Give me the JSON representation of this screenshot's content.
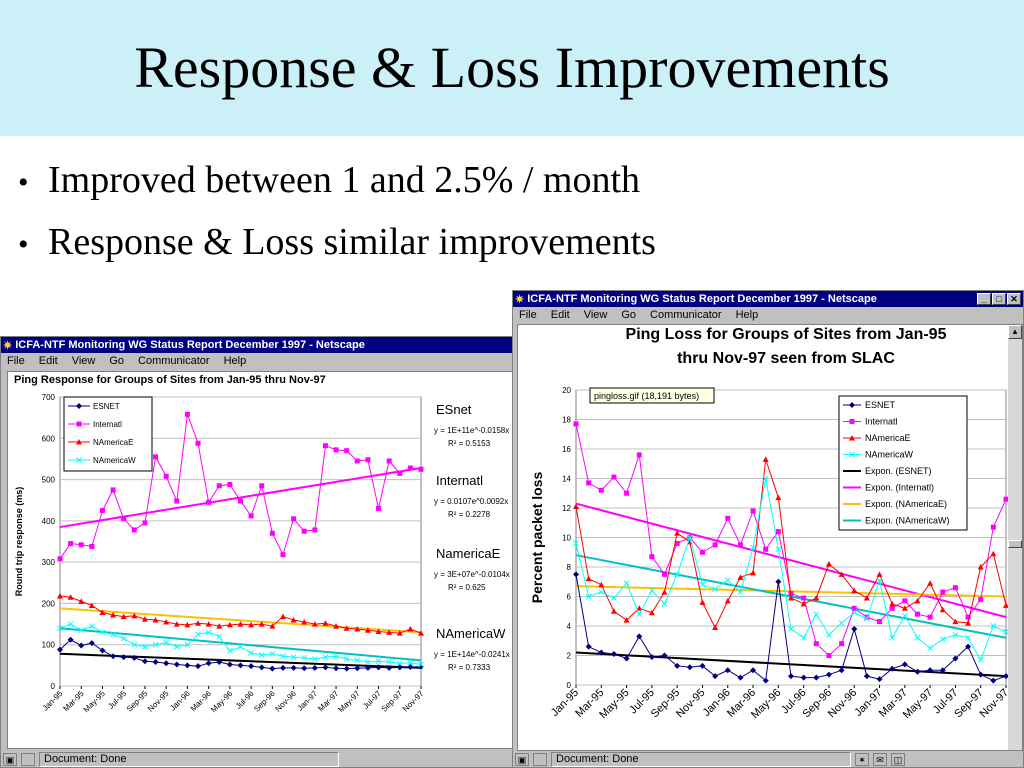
{
  "slide": {
    "title": "Response & Loss Improvements",
    "bullets": [
      "Improved between 1 and 2.5% / month",
      "Response & Loss similar improvements"
    ]
  },
  "browser": {
    "window_title": "ICFA-NTF Monitoring WG Status Report December 1997 - Netscape",
    "menus": [
      "File",
      "Edit",
      "View",
      "Go",
      "Communicator",
      "Help"
    ],
    "status": "Document: Done"
  },
  "colors": {
    "title_band": "#ccf0f7",
    "titlebar": "#000080",
    "esnet": "#000080",
    "internatl": "#ff00ff",
    "namericae": "#ff0000",
    "namericaw": "#00ffff",
    "fit_esnet": "#000000",
    "fit_internatl": "#ff00ff",
    "fit_namericae": "#ffc000",
    "fit_namericaw": "#00c0c0"
  },
  "chart_data": [
    {
      "type": "line",
      "title": "Ping Response for Groups of Sites from Jan-95 thru Nov-97",
      "ylabel": "Round trip response (ms)",
      "ylim": [
        0,
        700
      ],
      "yticks": [
        "0",
        "100",
        "200",
        "300",
        "400",
        "500",
        "600",
        "700"
      ],
      "tick_labels": [
        "Jan-95",
        "Mar-95",
        "May-95",
        "Jul-95",
        "Sep-95",
        "Nov-95",
        "Jan-96",
        "Mar-96",
        "May-96",
        "Jul-96",
        "Sep-96",
        "Nov-96",
        "Jan-97",
        "Mar-97",
        "May-97",
        "Jul-97",
        "Sep-97",
        "Nov-97"
      ],
      "grid": true,
      "legend": "top-left",
      "series": [
        {
          "name": "ESNET",
          "marker": "diamond",
          "values": [
            88,
            112,
            98,
            104,
            86,
            72,
            70,
            68,
            60,
            58,
            55,
            52,
            50,
            48,
            55,
            58,
            52,
            50,
            48,
            45,
            42,
            44,
            44,
            43,
            44,
            45,
            43,
            42,
            43,
            44,
            45,
            44,
            45,
            46,
            47
          ]
        },
        {
          "name": "Internatl",
          "marker": "square",
          "values": [
            308,
            345,
            342,
            338,
            425,
            475,
            405,
            378,
            395,
            555,
            508,
            448,
            658,
            588,
            445,
            485,
            488,
            448,
            412,
            485,
            370,
            318,
            405,
            375,
            378,
            582,
            572,
            570,
            545,
            548,
            430,
            545,
            515,
            528,
            525
          ]
        },
        {
          "name": "NAmericaE",
          "marker": "triangle",
          "values": [
            218,
            215,
            205,
            195,
            178,
            172,
            168,
            170,
            162,
            160,
            155,
            150,
            148,
            152,
            150,
            145,
            148,
            150,
            148,
            150,
            145,
            168,
            160,
            155,
            150,
            152,
            145,
            140,
            138,
            135,
            132,
            130,
            128,
            138,
            128
          ]
        },
        {
          "name": "NAmericaW",
          "marker": "x",
          "values": [
            140,
            150,
            135,
            145,
            130,
            125,
            115,
            100,
            95,
            100,
            105,
            95,
            100,
            125,
            130,
            120,
            85,
            95,
            80,
            75,
            78,
            72,
            70,
            68,
            65,
            70,
            72,
            65,
            62,
            58,
            60,
            58,
            55,
            56,
            52
          ]
        }
      ],
      "trends": [
        {
          "name": "ESnet",
          "equation": "y = 1E+11e^-0.0158x",
          "r2": "R² = 0.5153",
          "start": 78,
          "end": 44
        },
        {
          "name": "Internatl",
          "equation": "y = 0.0107e^0.0092x",
          "r2": "R² = 0.2278",
          "start": 385,
          "end": 528
        },
        {
          "name": "NamericaE",
          "equation": "y = 3E+07e^-0.0104x",
          "r2": "R² = 0.625",
          "start": 188,
          "end": 130
        },
        {
          "name": "NAmericaW",
          "equation": "y = 1E+14e^-0.0241x",
          "r2": "R² = 0.7333",
          "start": 140,
          "end": 62
        }
      ]
    },
    {
      "type": "line",
      "title": "Ping Loss for Groups of Sites from Jan-95 thru Nov-97 seen from SLAC",
      "ylabel": "Percent packet loss",
      "ylim": [
        0,
        20
      ],
      "yticks": [
        "0",
        "2",
        "4",
        "6",
        "8",
        "10",
        "12",
        "14",
        "16",
        "18",
        "20"
      ],
      "tick_labels": [
        "Jan-95",
        "Mar-95",
        "May-95",
        "Jul-95",
        "Sep-95",
        "Nov-95",
        "Jan-96",
        "Mar-96",
        "May-96",
        "Jul-96",
        "Sep-96",
        "Nov-96",
        "Jan-97",
        "Mar-97",
        "May-97",
        "Jul-97",
        "Sep-97",
        "Nov-97"
      ],
      "annotation": "pingloss.gif (18,191 bytes)",
      "grid": true,
      "legend": "top-right",
      "series": [
        {
          "name": "ESNET",
          "marker": "diamond",
          "values": [
            7.5,
            2.6,
            2.2,
            2.1,
            1.8,
            3.3,
            1.9,
            2.0,
            1.3,
            1.2,
            1.3,
            0.6,
            1.0,
            0.5,
            1.0,
            0.3,
            7.0,
            0.6,
            0.5,
            0.5,
            0.7,
            1.0,
            3.8,
            0.6,
            0.4,
            1.1,
            1.4,
            0.9,
            1.0,
            1.0,
            1.8,
            2.6,
            0.7,
            0.3,
            0.6
          ]
        },
        {
          "name": "Internatl",
          "marker": "square",
          "values": [
            17.7,
            13.7,
            13.2,
            14.1,
            13.0,
            15.6,
            8.7,
            7.5,
            9.6,
            10.0,
            9.0,
            9.5,
            11.3,
            9.5,
            11.8,
            9.2,
            10.4,
            6.2,
            5.9,
            2.8,
            2.0,
            2.8,
            5.2,
            4.6,
            4.3,
            5.2,
            5.7,
            4.8,
            4.6,
            6.3,
            6.6,
            4.6,
            5.8,
            10.7,
            12.6
          ]
        },
        {
          "name": "NAmericaE",
          "marker": "triangle",
          "values": [
            12.1,
            7.2,
            6.8,
            5.0,
            4.4,
            5.2,
            4.9,
            6.3,
            10.3,
            9.7,
            5.6,
            3.9,
            5.7,
            7.3,
            7.6,
            15.3,
            12.7,
            5.9,
            5.5,
            5.9,
            8.2,
            7.5,
            6.4,
            5.9,
            7.5,
            5.5,
            5.2,
            5.7,
            6.9,
            5.1,
            4.3,
            4.2,
            8.0,
            8.9,
            5.4
          ]
        },
        {
          "name": "NAmericaW",
          "marker": "x",
          "values": [
            9.6,
            6.0,
            6.3,
            5.9,
            6.9,
            4.8,
            6.4,
            5.5,
            7.5,
            10.0,
            6.8,
            6.5,
            7.1,
            6.3,
            9.3,
            14.0,
            9.2,
            3.8,
            3.2,
            4.8,
            3.4,
            4.2,
            4.9,
            4.5,
            7.1,
            3.2,
            4.7,
            3.2,
            2.5,
            3.1,
            3.4,
            3.2,
            1.7,
            4.0,
            3.6
          ]
        }
      ],
      "trends": [
        {
          "name": "Expon. (ESNET)",
          "start": 2.2,
          "end": 0.6
        },
        {
          "name": "Expon. (Internatl)",
          "start": 12.3,
          "end": 4.6
        },
        {
          "name": "Expon. (NAmericaE)",
          "start": 6.7,
          "end": 6.0
        },
        {
          "name": "Expon. (NAmericaW)",
          "start": 8.8,
          "end": 3.2
        }
      ]
    }
  ]
}
